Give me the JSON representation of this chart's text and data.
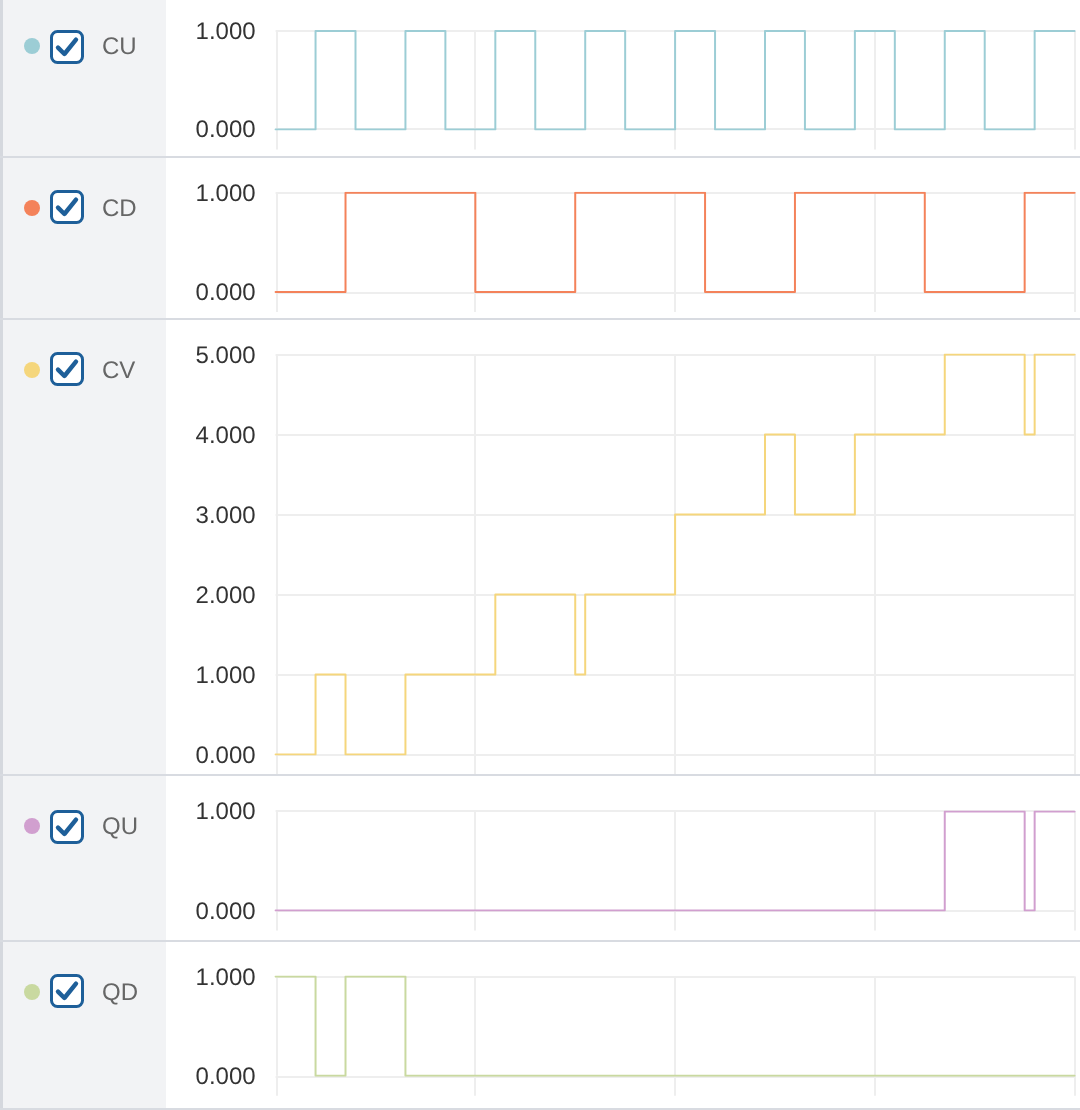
{
  "chart_data": [
    {
      "type": "step",
      "categories": [
        null,
        null,
        null,
        null,
        null,
        null,
        null,
        null,
        null,
        null,
        null,
        null,
        null,
        null,
        null,
        null,
        null,
        null,
        null,
        null,
        null,
        null,
        null,
        null,
        null,
        null,
        null,
        null,
        null,
        null,
        null,
        null,
        null,
        null,
        null,
        null,
        null,
        null,
        null,
        null,
        null,
        null,
        null,
        null,
        null,
        null,
        null,
        null,
        null,
        null,
        null,
        null,
        null,
        null,
        null,
        null,
        null,
        null,
        null,
        null,
        null,
        null,
        null,
        null,
        null,
        null,
        null,
        null,
        null,
        null,
        null,
        null,
        null,
        null,
        null,
        null,
        null,
        null,
        null,
        null,
        null
      ],
      "series": [
        {
          "name": "CU",
          "color": "#9ccdd5",
          "values": [
            0,
            0,
            0,
            0,
            1,
            1,
            1,
            1,
            0,
            0,
            0,
            0,
            0,
            1,
            1,
            1,
            1,
            0,
            0,
            0,
            0,
            0,
            1,
            1,
            1,
            1,
            0,
            0,
            0,
            0,
            0,
            1,
            1,
            1,
            1,
            0,
            0,
            0,
            0,
            0,
            1,
            1,
            1,
            1,
            0,
            0,
            0,
            0,
            0,
            1,
            1,
            1,
            1,
            0,
            0,
            0,
            0,
            0,
            1,
            1,
            1,
            1,
            0,
            0,
            0,
            0,
            0,
            1,
            1,
            1,
            1,
            0,
            0,
            0,
            0,
            0,
            1,
            1,
            1,
            1,
            1
          ]
        }
      ],
      "ylim": [
        0,
        1
      ],
      "yticks": [
        {
          "value": 0,
          "label": "0.000"
        },
        {
          "value": 1,
          "label": "1.000"
        }
      ],
      "grid": true,
      "legend": "top left",
      "tick_labels": "y",
      "line_style": "solid"
    },
    {
      "type": "step",
      "categories": [
        null,
        null,
        null,
        null,
        null,
        null,
        null,
        null,
        null,
        null,
        null,
        null,
        null,
        null,
        null,
        null,
        null,
        null,
        null,
        null,
        null,
        null,
        null,
        null,
        null,
        null,
        null,
        null,
        null,
        null,
        null,
        null,
        null,
        null,
        null,
        null,
        null,
        null,
        null,
        null,
        null,
        null,
        null,
        null,
        null,
        null,
        null,
        null,
        null,
        null,
        null,
        null,
        null,
        null,
        null,
        null,
        null,
        null,
        null,
        null,
        null,
        null,
        null,
        null,
        null,
        null,
        null,
        null,
        null,
        null,
        null,
        null,
        null,
        null,
        null,
        null,
        null,
        null,
        null,
        null,
        null
      ],
      "series": [
        {
          "name": "CD",
          "color": "#f4825a",
          "values": [
            0,
            0,
            0,
            0,
            0,
            0,
            0,
            1,
            1,
            1,
            1,
            1,
            1,
            1,
            1,
            1,
            1,
            1,
            1,
            1,
            0,
            0,
            0,
            0,
            0,
            0,
            0,
            0,
            0,
            0,
            1,
            1,
            1,
            1,
            1,
            1,
            1,
            1,
            1,
            1,
            1,
            1,
            1,
            0,
            0,
            0,
            0,
            0,
            0,
            0,
            0,
            0,
            1,
            1,
            1,
            1,
            1,
            1,
            1,
            1,
            1,
            1,
            1,
            1,
            1,
            0,
            0,
            0,
            0,
            0,
            0,
            0,
            0,
            0,
            0,
            1,
            1,
            1,
            1,
            1,
            1
          ]
        }
      ],
      "ylim": [
        0,
        1
      ],
      "yticks": [
        {
          "value": 0,
          "label": "0.000"
        },
        {
          "value": 1,
          "label": "1.000"
        }
      ],
      "grid": true,
      "legend": "top left",
      "tick_labels": "y",
      "line_style": "solid"
    },
    {
      "type": "step",
      "categories": [
        null,
        null,
        null,
        null,
        null,
        null,
        null,
        null,
        null,
        null,
        null,
        null,
        null,
        null,
        null,
        null,
        null,
        null,
        null,
        null,
        null,
        null,
        null,
        null,
        null,
        null,
        null,
        null,
        null,
        null,
        null,
        null,
        null,
        null,
        null,
        null,
        null,
        null,
        null,
        null,
        null,
        null,
        null,
        null,
        null,
        null,
        null,
        null,
        null,
        null,
        null,
        null,
        null,
        null,
        null,
        null,
        null,
        null,
        null,
        null,
        null,
        null,
        null,
        null,
        null,
        null,
        null,
        null,
        null,
        null,
        null,
        null,
        null,
        null,
        null,
        null,
        null,
        null,
        null,
        null,
        null
      ],
      "series": [
        {
          "name": "CV",
          "color": "#f5d67c",
          "values": [
            0,
            0,
            0,
            0,
            1,
            1,
            1,
            0,
            0,
            0,
            0,
            0,
            0,
            1,
            1,
            1,
            1,
            1,
            1,
            1,
            1,
            1,
            2,
            2,
            2,
            2,
            2,
            2,
            2,
            2,
            1,
            2,
            2,
            2,
            2,
            2,
            2,
            2,
            2,
            2,
            3,
            3,
            3,
            3,
            3,
            3,
            3,
            3,
            3,
            4,
            4,
            4,
            3,
            3,
            3,
            3,
            3,
            3,
            4,
            4,
            4,
            4,
            4,
            4,
            4,
            4,
            4,
            5,
            5,
            5,
            5,
            5,
            5,
            5,
            5,
            4,
            5,
            5,
            5,
            5,
            5
          ]
        }
      ],
      "ylim": [
        0,
        5
      ],
      "yticks": [
        {
          "value": 0,
          "label": "0.000"
        },
        {
          "value": 1,
          "label": "1.000"
        },
        {
          "value": 2,
          "label": "2.000"
        },
        {
          "value": 3,
          "label": "3.000"
        },
        {
          "value": 4,
          "label": "4.000"
        },
        {
          "value": 5,
          "label": "5.000"
        }
      ],
      "grid": true,
      "legend": "top left",
      "tick_labels": "y",
      "line_style": "solid"
    },
    {
      "type": "step",
      "categories": [
        null,
        null,
        null,
        null,
        null,
        null,
        null,
        null,
        null,
        null,
        null,
        null,
        null,
        null,
        null,
        null,
        null,
        null,
        null,
        null,
        null,
        null,
        null,
        null,
        null,
        null,
        null,
        null,
        null,
        null,
        null,
        null,
        null,
        null,
        null,
        null,
        null,
        null,
        null,
        null,
        null,
        null,
        null,
        null,
        null,
        null,
        null,
        null,
        null,
        null,
        null,
        null,
        null,
        null,
        null,
        null,
        null,
        null,
        null,
        null,
        null,
        null,
        null,
        null,
        null,
        null,
        null,
        null,
        null,
        null,
        null,
        null,
        null,
        null,
        null,
        null,
        null,
        null,
        null,
        null,
        null
      ],
      "series": [
        {
          "name": "QU",
          "color": "#d19fcf",
          "values": [
            0,
            0,
            0,
            0,
            0,
            0,
            0,
            0,
            0,
            0,
            0,
            0,
            0,
            0,
            0,
            0,
            0,
            0,
            0,
            0,
            0,
            0,
            0,
            0,
            0,
            0,
            0,
            0,
            0,
            0,
            0,
            0,
            0,
            0,
            0,
            0,
            0,
            0,
            0,
            0,
            0,
            0,
            0,
            0,
            0,
            0,
            0,
            0,
            0,
            0,
            0,
            0,
            0,
            0,
            0,
            0,
            0,
            0,
            0,
            0,
            0,
            0,
            0,
            0,
            0,
            0,
            0,
            1,
            1,
            1,
            1,
            1,
            1,
            1,
            1,
            0,
            1,
            1,
            1,
            1,
            1
          ]
        }
      ],
      "ylim": [
        0,
        1
      ],
      "yticks": [
        {
          "value": 0,
          "label": "0.000"
        },
        {
          "value": 1,
          "label": "1.000"
        }
      ],
      "grid": true,
      "legend": "top left",
      "tick_labels": "y",
      "line_style": "solid"
    },
    {
      "type": "step",
      "categories": [
        null,
        null,
        null,
        null,
        null,
        null,
        null,
        null,
        null,
        null,
        null,
        null,
        null,
        null,
        null,
        null,
        null,
        null,
        null,
        null,
        null,
        null,
        null,
        null,
        null,
        null,
        null,
        null,
        null,
        null,
        null,
        null,
        null,
        null,
        null,
        null,
        null,
        null,
        null,
        null,
        null,
        null,
        null,
        null,
        null,
        null,
        null,
        null,
        null,
        null,
        null,
        null,
        null,
        null,
        null,
        null,
        null,
        null,
        null,
        null,
        null,
        null,
        null,
        null,
        null,
        null,
        null,
        null,
        null,
        null,
        null,
        null,
        null,
        null,
        null,
        null,
        null,
        null,
        null,
        null,
        null
      ],
      "series": [
        {
          "name": "QD",
          "color": "#c9d9a0",
          "values": [
            1,
            1,
            1,
            1,
            0,
            0,
            0,
            1,
            1,
            1,
            1,
            1,
            1,
            0,
            0,
            0,
            0,
            0,
            0,
            0,
            0,
            0,
            0,
            0,
            0,
            0,
            0,
            0,
            0,
            0,
            0,
            0,
            0,
            0,
            0,
            0,
            0,
            0,
            0,
            0,
            0,
            0,
            0,
            0,
            0,
            0,
            0,
            0,
            0,
            0,
            0,
            0,
            0,
            0,
            0,
            0,
            0,
            0,
            0,
            0,
            0,
            0,
            0,
            0,
            0,
            0,
            0,
            0,
            0,
            0,
            0,
            0,
            0,
            0,
            0,
            0,
            0,
            0,
            0,
            0,
            0
          ]
        }
      ],
      "ylim": [
        0,
        1
      ],
      "yticks": [
        {
          "value": 0,
          "label": "0.000"
        },
        {
          "value": 1,
          "label": "1.000"
        }
      ],
      "grid": true,
      "legend": "top left",
      "tick_labels": "y",
      "line_style": "solid"
    }
  ]
}
